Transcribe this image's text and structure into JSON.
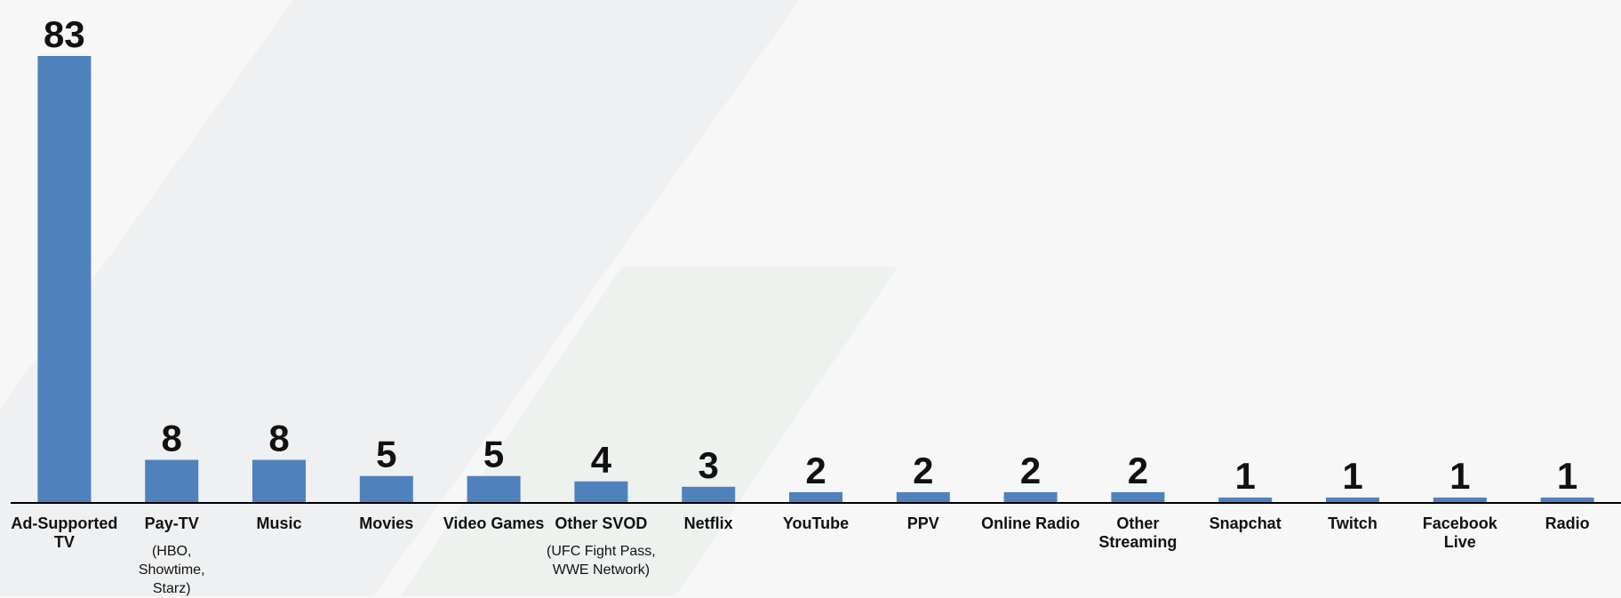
{
  "chart_data": {
    "type": "bar",
    "categories": [
      "Ad-Supported\nTV",
      "Pay-TV",
      "Music",
      "Movies",
      "Video Games",
      "Other SVOD",
      "Netflix",
      "YouTube",
      "PPV",
      "Online Radio",
      "Other\nStreaming",
      "Snapchat",
      "Twitch",
      "Facebook\nLive",
      "Radio"
    ],
    "category_notes": [
      null,
      "(HBO,\nShowtime,\nStarz)",
      null,
      null,
      null,
      "(UFC Fight Pass,\nWWE Network)",
      null,
      null,
      null,
      null,
      null,
      null,
      null,
      null,
      null
    ],
    "values": [
      83,
      8,
      8,
      5,
      5,
      4,
      3,
      2,
      2,
      2,
      2,
      1,
      1,
      1,
      1
    ],
    "color": "#4f81bd"
  }
}
